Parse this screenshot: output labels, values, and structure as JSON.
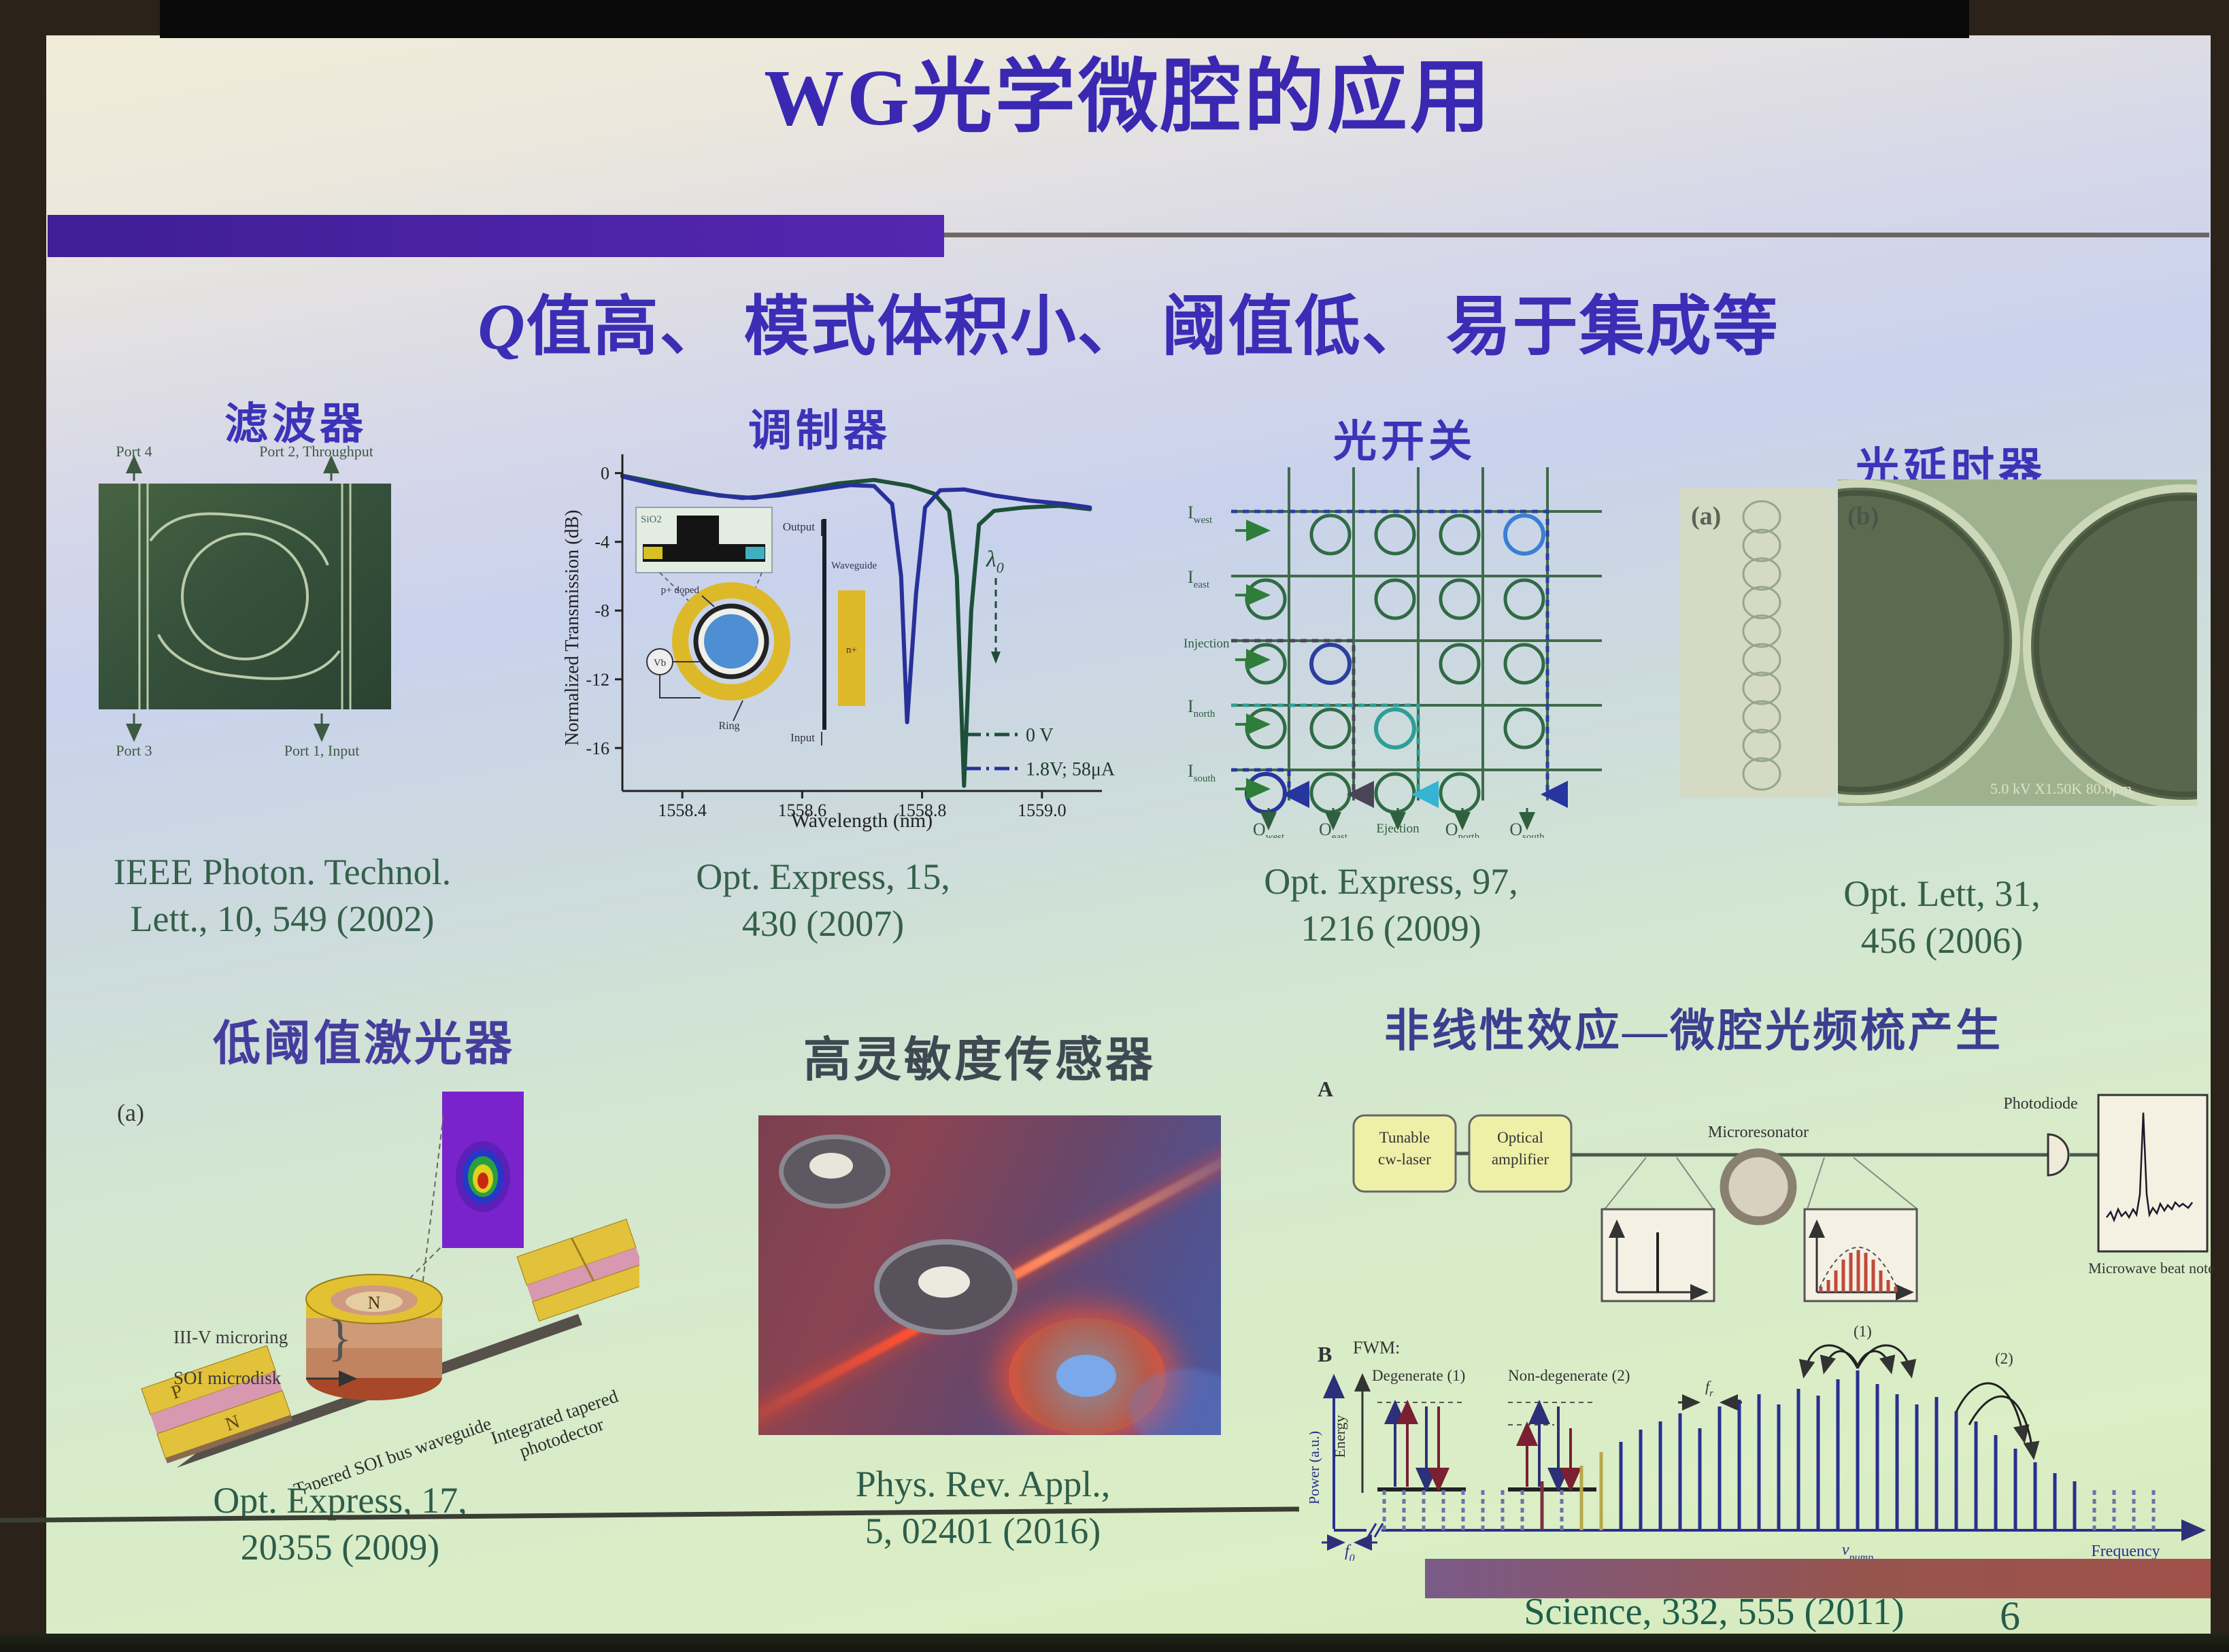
{
  "slide": {
    "title": "WG光学微腔的应用",
    "subtitle_q": "Q",
    "subtitle_rest": "值高、 模式体积小、 阈值低、 易于集成等",
    "page_number": "6"
  },
  "sections": {
    "filter": {
      "heading": "滤波器",
      "port4": "Port 4",
      "port2": "Port 2, Throughput",
      "port3": "Port 3",
      "port1": "Port 1, Input",
      "citation1": "IEEE Photon. Technol.",
      "citation2": "Lett., 10, 549 (2002)"
    },
    "modulator": {
      "heading": "调制器",
      "ylabel": "Normalized Transmission (dB)",
      "xlabel": "Wavelength (nm)",
      "legend1": "0 V",
      "legend2": "1.8V; 58μA",
      "lambda": "λ",
      "lambda_sub": "0",
      "inset": {
        "sio2": "SiO2",
        "output": "Output",
        "waveguide": "Waveguide",
        "p_doped": "p+ doped",
        "n_plus": "n+",
        "ring": "Ring",
        "input": "Input",
        "vb": "Vb"
      },
      "citation1": "Opt. Express, 15,",
      "citation2": "430 (2007)",
      "chart_data": {
        "type": "line",
        "xlabel": "Wavelength (nm)",
        "ylabel": "Normalized Transmission (dB)",
        "xlim": [
          1558.3,
          1559.1
        ],
        "ylim": [
          -18.5,
          0.5
        ],
        "x_ticks": [
          1558.4,
          1558.6,
          1558.8,
          1559.0
        ],
        "y_ticks": [
          0,
          -4,
          -8,
          -12,
          -16
        ],
        "series": [
          {
            "name": "0 V",
            "color": "#1d5038",
            "points": [
              [
                1558.3,
                -0.15
              ],
              [
                1558.38,
                -0.7
              ],
              [
                1558.46,
                -1.3
              ],
              [
                1558.52,
                -1.45
              ],
              [
                1558.58,
                -1.1
              ],
              [
                1558.66,
                -0.6
              ],
              [
                1558.72,
                -0.4
              ],
              [
                1558.78,
                -0.75
              ],
              [
                1558.82,
                -1.2
              ],
              [
                1558.845,
                -2.2
              ],
              [
                1558.858,
                -6
              ],
              [
                1558.87,
                -18.2
              ],
              [
                1558.882,
                -8
              ],
              [
                1558.895,
                -3
              ],
              [
                1558.92,
                -2.2
              ],
              [
                1558.97,
                -2.0
              ],
              [
                1559.03,
                -1.9
              ],
              [
                1559.08,
                -2.1
              ]
            ]
          },
          {
            "name": "1.8V; 58μA",
            "color": "#28309a",
            "points": [
              [
                1558.3,
                -0.2
              ],
              [
                1558.36,
                -0.7
              ],
              [
                1558.42,
                -1.1
              ],
              [
                1558.5,
                -1.45
              ],
              [
                1558.56,
                -1.3
              ],
              [
                1558.62,
                -1.0
              ],
              [
                1558.68,
                -0.7
              ],
              [
                1558.72,
                -0.75
              ],
              [
                1558.75,
                -1.8
              ],
              [
                1558.765,
                -6
              ],
              [
                1558.775,
                -14.5
              ],
              [
                1558.79,
                -7
              ],
              [
                1558.805,
                -2
              ],
              [
                1558.83,
                -1.0
              ],
              [
                1558.87,
                -0.95
              ],
              [
                1558.92,
                -1.3
              ],
              [
                1558.98,
                -1.6
              ],
              [
                1559.04,
                -1.8
              ],
              [
                1559.08,
                -2.0
              ]
            ]
          }
        ]
      }
    },
    "switch": {
      "heading": "光开关",
      "inputs": [
        {
          "base": "I",
          "sub": "west"
        },
        {
          "base": "I",
          "sub": "east"
        },
        {
          "base": "Injection",
          "sub": ""
        },
        {
          "base": "I",
          "sub": "north"
        },
        {
          "base": "I",
          "sub": "south"
        }
      ],
      "outputs": [
        {
          "base": "O",
          "sub": "west"
        },
        {
          "base": "O",
          "sub": "east"
        },
        {
          "base": "Ejection",
          "sub": ""
        },
        {
          "base": "O",
          "sub": "north"
        },
        {
          "base": "O",
          "sub": "south"
        }
      ],
      "highlights": [
        [
          0,
          4,
          "#3a7fd4"
        ],
        [
          2,
          1,
          "#2c3f9e"
        ],
        [
          3,
          2,
          "#2e9e97"
        ],
        [
          4,
          0,
          "#27359e"
        ]
      ],
      "citation1": "Opt. Express, 97,",
      "citation2": "1216 (2009)"
    },
    "delay": {
      "heading": "光延时器",
      "label_a": "(a)",
      "label_b": "(b)",
      "sem_caption": "5.0 kV X1.50K 80.0μm",
      "citation1": "Opt. Lett, 31,",
      "citation2": "456 (2006)"
    },
    "laser": {
      "heading": "低阈值激光器",
      "label_a": "(a)",
      "microring": "III-V microring",
      "microdisk": "SOI microdisk",
      "waveguide": "Tapered SOI bus waveguide",
      "photodet1": "Integrated tapered",
      "photodet2": "photodector",
      "p": "P",
      "n_chip": "N",
      "n_ring": "N",
      "citation1": "Opt. Express, 17,",
      "citation2": "20355 (2009)"
    },
    "sensor": {
      "heading": "高灵敏度传感器",
      "citation1": "Phys. Rev. Appl.,",
      "citation2": "5, 02401 (2016)"
    },
    "comb": {
      "heading": "非线性效应—微腔光频梳产生",
      "label_a": "A",
      "label_b": "B",
      "box1_line1": "Tunable",
      "box1_line2": "cw-laser",
      "box2_line1": "Optical",
      "box2_line2": "amplifier",
      "microresonator": "Microresonator",
      "photodiode": "Photodiode",
      "beatnote": "Microwave beat note",
      "fwm": "FWM:",
      "degenerate": "Degenerate (1)",
      "nondegenerate": "Non-degenerate (2)",
      "mark1": "(1)",
      "mark2": "(2)",
      "energy": "Energy",
      "power": "Power (a.u.)",
      "frequency": "Frequency",
      "f_letter": "f",
      "f0_sub": "0",
      "fr_letter": "f",
      "fr_sub": "r",
      "nu": "ν",
      "pump_sub": "pump",
      "citation": "Science, 332, 555 (2011)",
      "chart_data": {
        "type": "bar",
        "x0": 110,
        "dx": 29,
        "baseline": 700,
        "pump_index": 24,
        "heights": [
          60,
          60,
          60,
          60,
          60,
          60,
          60,
          60,
          72,
          62,
          95,
          115,
          130,
          148,
          160,
          172,
          150,
          182,
          192,
          200,
          185,
          208,
          198,
          222,
          235,
          215,
          200,
          185,
          196,
          175,
          160,
          140,
          120,
          100,
          84,
          72,
          60,
          60,
          60,
          60
        ],
        "dashed": [
          0,
          1,
          2,
          3,
          4,
          5,
          6,
          7,
          9,
          36,
          37,
          38,
          39
        ],
        "gold": [
          10,
          11
        ],
        "maroon": [
          8
        ],
        "navy": "#28308f",
        "dash_color": "#6a74a8",
        "gold_color": "#b8a84a",
        "maroon_color": "#7a3040",
        "xlabel": "Frequency",
        "ylabel": "Power (a.u.)"
      }
    }
  }
}
